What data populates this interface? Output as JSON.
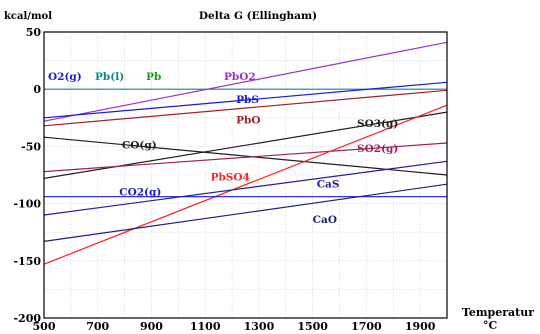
{
  "chart_data": {
    "type": "line",
    "title": "Delta G (Ellingham)",
    "ylabel": "kcal/mol",
    "xlabel": "Temperatur",
    "xlabel_unit": "°C",
    "xlim": [
      500,
      2000
    ],
    "ylim": [
      -200,
      50
    ],
    "x_ticks": [
      500,
      700,
      900,
      1100,
      1300,
      1500,
      1700,
      1900
    ],
    "y_ticks": [
      50,
      0,
      -50,
      -100,
      -150,
      -200
    ],
    "grid": true,
    "series": [
      {
        "name": "O2(g)",
        "color": "#0d8a8a",
        "x": [
          500,
          2000
        ],
        "y": [
          0,
          0
        ]
      },
      {
        "name": "PbO2",
        "color": "#9b30c8",
        "x": [
          500,
          2000
        ],
        "y": [
          -28,
          41
        ]
      },
      {
        "name": "PbS",
        "color": "#1a1ad0",
        "x": [
          500,
          2000
        ],
        "y": [
          -25,
          6
        ]
      },
      {
        "name": "PbO",
        "color": "#a0202a",
        "x": [
          500,
          2000
        ],
        "y": [
          -32,
          -1
        ]
      },
      {
        "name": "SO3(g)",
        "color": "#202020",
        "x": [
          500,
          2000
        ],
        "y": [
          -78,
          -20
        ]
      },
      {
        "name": "CO(g)",
        "color": "#202020",
        "x": [
          500,
          2000
        ],
        "y": [
          -42,
          -75
        ]
      },
      {
        "name": "SO2(g)",
        "color": "#a0205a",
        "x": [
          500,
          2000
        ],
        "y": [
          -72,
          -47
        ]
      },
      {
        "name": "PbSO4",
        "color": "#ff2020",
        "x": [
          500,
          2000
        ],
        "y": [
          -153,
          -14
        ]
      },
      {
        "name": "CaS",
        "color": "#20209a",
        "x": [
          500,
          2000
        ],
        "y": [
          -110,
          -63
        ]
      },
      {
        "name": "CO2(g)",
        "color": "#1a1ad0",
        "x": [
          500,
          2000
        ],
        "y": [
          -94,
          -94
        ]
      },
      {
        "name": "CaO",
        "color": "#20207a",
        "x": [
          500,
          2000
        ],
        "y": [
          -133,
          -83
        ]
      }
    ],
    "annotations": [
      {
        "text": "O2(g)",
        "color": "#1a1ad0",
        "x": 515,
        "y": 8
      },
      {
        "text": "Pb(l)",
        "color": "#0d8a8a",
        "x": 690,
        "y": 8
      },
      {
        "text": "Pb",
        "color": "#1a9a1a",
        "x": 880,
        "y": 8
      },
      {
        "text": "PbO2",
        "color": "#9b30c8",
        "x": 1170,
        "y": 8
      },
      {
        "text": "PbS",
        "color": "#1a1ad0",
        "x": 1215,
        "y": -12
      },
      {
        "text": "PbO",
        "color": "#a0202a",
        "x": 1215,
        "y": -30
      },
      {
        "text": "SO3(g)",
        "color": "#202020",
        "x": 1665,
        "y": -33
      },
      {
        "text": "CO(g)",
        "color": "#202020",
        "x": 790,
        "y": -52
      },
      {
        "text": "SO2(g)",
        "color": "#a0205a",
        "x": 1665,
        "y": -55
      },
      {
        "text": "PbSO4",
        "color": "#ff2020",
        "x": 1120,
        "y": -80
      },
      {
        "text": "CaS",
        "color": "#20209a",
        "x": 1515,
        "y": -86
      },
      {
        "text": "CO2(g)",
        "color": "#1a1ad0",
        "x": 780,
        "y": -93
      },
      {
        "text": "CaO",
        "color": "#20207a",
        "x": 1500,
        "y": -117
      }
    ]
  }
}
